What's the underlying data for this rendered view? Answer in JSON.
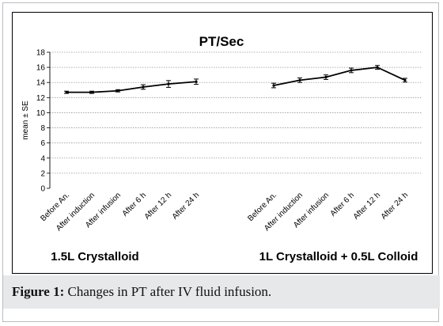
{
  "caption": {
    "label": "Figure 1:",
    "text": " Changes in PT after IV fluid infusion."
  },
  "chart_data": {
    "type": "line",
    "title": "PT/Sec",
    "ylabel": "mean ± SE",
    "ylim": [
      0,
      18
    ],
    "yticks": [
      0,
      2,
      4,
      6,
      8,
      10,
      12,
      14,
      16,
      18
    ],
    "grid": true,
    "legend": "none",
    "line_color": "#000000",
    "groups": [
      {
        "name": "1.5L Crystalloid",
        "categories": [
          "Before An.",
          "After induction",
          "After infusion",
          "After 6 h",
          "After 12 h",
          "After 24 h"
        ],
        "values": [
          12.7,
          12.7,
          12.9,
          13.4,
          13.8,
          14.1
        ],
        "errors": [
          0.15,
          0.15,
          0.15,
          0.3,
          0.45,
          0.35
        ]
      },
      {
        "name": "1L Crystalloid + 0.5L Colloid",
        "categories": [
          "Before An.",
          "After induction",
          "After infusion",
          "After 6 h",
          "After 12 h",
          "After 24 h"
        ],
        "values": [
          13.6,
          14.3,
          14.7,
          15.6,
          16.0,
          14.3
        ],
        "errors": [
          0.3,
          0.3,
          0.3,
          0.3,
          0.25,
          0.25
        ]
      }
    ]
  }
}
